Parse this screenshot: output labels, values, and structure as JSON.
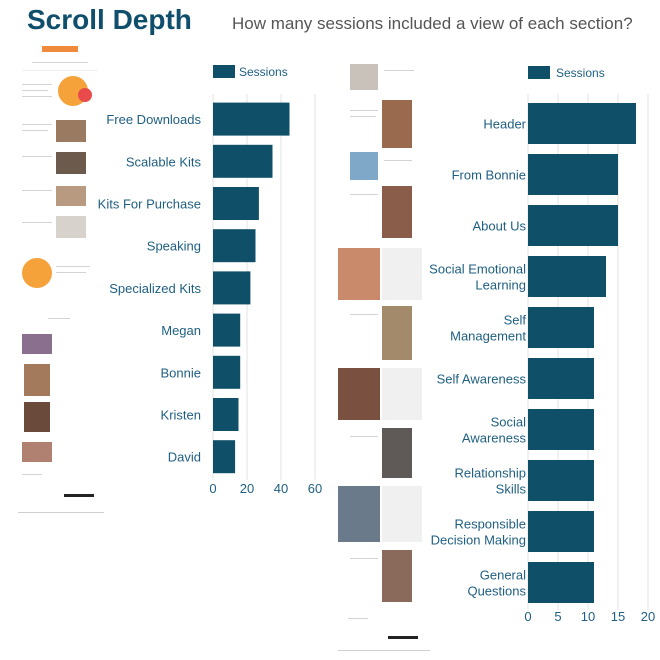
{
  "header": {
    "title": "Scroll Depth",
    "subtitle": "How many sessions included a view of each section?"
  },
  "colors": {
    "bar": "#0f5068",
    "title": "#0f4f6b",
    "label": "#1f5f82",
    "grid": "#e3e3e3"
  },
  "chart_data": [
    {
      "type": "bar",
      "orientation": "horizontal",
      "legend": "Sessions",
      "legend_position": "top",
      "categories": [
        "Free Downloads",
        "Scalable Kits",
        "Kits For Purchase",
        "Speaking",
        "Specialized Kits",
        "Megan",
        "Bonnie",
        "Kristen",
        "David"
      ],
      "series": [
        {
          "name": "Sessions",
          "values": [
            45,
            35,
            27,
            25,
            22,
            16,
            16,
            15,
            13
          ]
        }
      ],
      "xlim": [
        0,
        60
      ],
      "xticks": [
        0,
        20,
        40,
        60
      ],
      "grid": true
    },
    {
      "type": "bar",
      "orientation": "horizontal",
      "legend": "Sessions",
      "legend_position": "top",
      "categories": [
        "Header",
        "From Bonnie",
        "About Us",
        "Social Emotional\nLearning",
        "Self\nManagement",
        "Self Awareness",
        "Social\nAwareness",
        "Relationship\nSkills",
        "Responsible\nDecision Making",
        "General\nQuestions"
      ],
      "series": [
        {
          "name": "Sessions",
          "values": [
            18,
            15,
            15,
            13,
            11,
            11,
            11,
            11,
            11,
            11
          ]
        }
      ],
      "xlim": [
        0,
        20
      ],
      "xticks": [
        0,
        5,
        10,
        15,
        20
      ],
      "grid": true
    }
  ]
}
